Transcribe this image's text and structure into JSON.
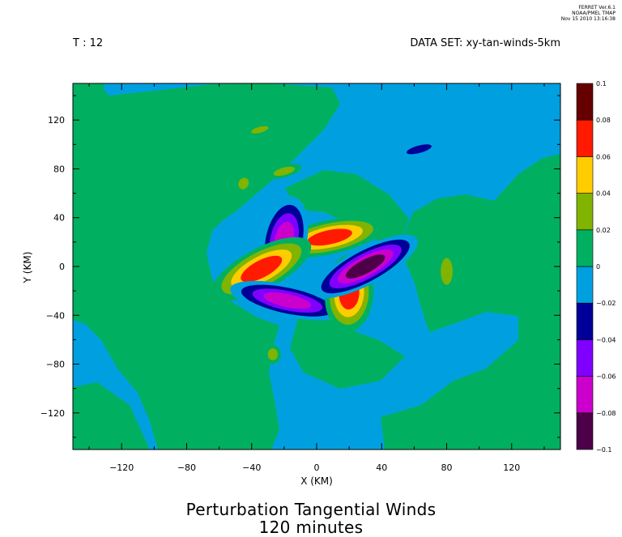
{
  "header": {
    "credit": [
      "FERRET Ver.6.1",
      "NOAA/PMEL TMAP",
      "Nov 15 2010 13:16:38"
    ],
    "time_label": "T : 12",
    "dataset_label": "DATA SET: xy-tan-winds-5km"
  },
  "chart_data": {
    "type": "heatmap",
    "title": "Perturbation Tangential Winds",
    "subtitle": "120 minutes",
    "xlabel": "X (KM)",
    "ylabel": "Y (KM)",
    "xlim": [
      -150,
      150
    ],
    "ylim": [
      -150,
      150
    ],
    "xticks": [
      -120,
      -80,
      -40,
      0,
      40,
      80,
      120
    ],
    "yticks": [
      120,
      80,
      40,
      0,
      -40,
      -80,
      -120
    ],
    "grid": false,
    "colorbar": {
      "levels": [
        -0.1,
        -0.08,
        -0.06,
        -0.04,
        -0.02,
        0,
        0.02,
        0.04,
        0.06,
        0.08,
        0.1
      ],
      "level_labels": [
        "-0.1",
        "-0.08",
        "-0.06",
        "-0.04",
        "-0.02",
        "0",
        "0.02",
        "0.04",
        "0.06",
        "0.08",
        "0.1"
      ],
      "colors": [
        "#4d0047",
        "#cc00cc",
        "#8000ff",
        "#000099",
        "#00a0e0",
        "#00b060",
        "#80b400",
        "#ffcc00",
        "#ff1a00",
        "#660000"
      ]
    },
    "features": [
      {
        "kind": "positive",
        "cx": 8,
        "cy": 24,
        "rx": 34,
        "ry": 14,
        "rot": -12,
        "peak": 0.08
      },
      {
        "kind": "negative",
        "cx": -20,
        "cy": 22,
        "rx": 14,
        "ry": 36,
        "rot": 12,
        "peak": -0.08
      },
      {
        "kind": "positive",
        "cx": -34,
        "cy": -2,
        "rx": 34,
        "ry": 17,
        "rot": -28,
        "peak": 0.08
      },
      {
        "kind": "negative",
        "cx": -18,
        "cy": -28,
        "rx": 36,
        "ry": 13,
        "rot": 12,
        "peak": -0.08
      },
      {
        "kind": "positive",
        "cx": 20,
        "cy": -22,
        "rx": 15,
        "ry": 32,
        "rot": 4,
        "peak": 0.08
      },
      {
        "kind": "negative",
        "cx": 30,
        "cy": 0,
        "rx": 36,
        "ry": 15,
        "rot": -28,
        "peak": -0.1
      },
      {
        "kind": "negative",
        "cx": 63,
        "cy": 96,
        "rx": 13,
        "ry": 5,
        "rot": -15,
        "peak": -0.04
      },
      {
        "kind": "positive",
        "cx": 80,
        "cy": -4,
        "rx": 6,
        "ry": 18,
        "rot": 0,
        "peak": 0.04
      },
      {
        "kind": "positive",
        "cx": -20,
        "cy": 78,
        "rx": 11,
        "ry": 5,
        "rot": -15,
        "peak": 0.04
      },
      {
        "kind": "positive",
        "cx": -45,
        "cy": 68,
        "rx": 5,
        "ry": 8,
        "rot": 30,
        "peak": 0.04
      },
      {
        "kind": "positive",
        "cx": -35,
        "cy": 112,
        "rx": 9,
        "ry": 4,
        "rot": -15,
        "peak": 0.04
      },
      {
        "kind": "positive",
        "cx": -27,
        "cy": -72,
        "rx": 5,
        "ry": 8,
        "rot": 0,
        "peak": 0.04
      }
    ]
  }
}
